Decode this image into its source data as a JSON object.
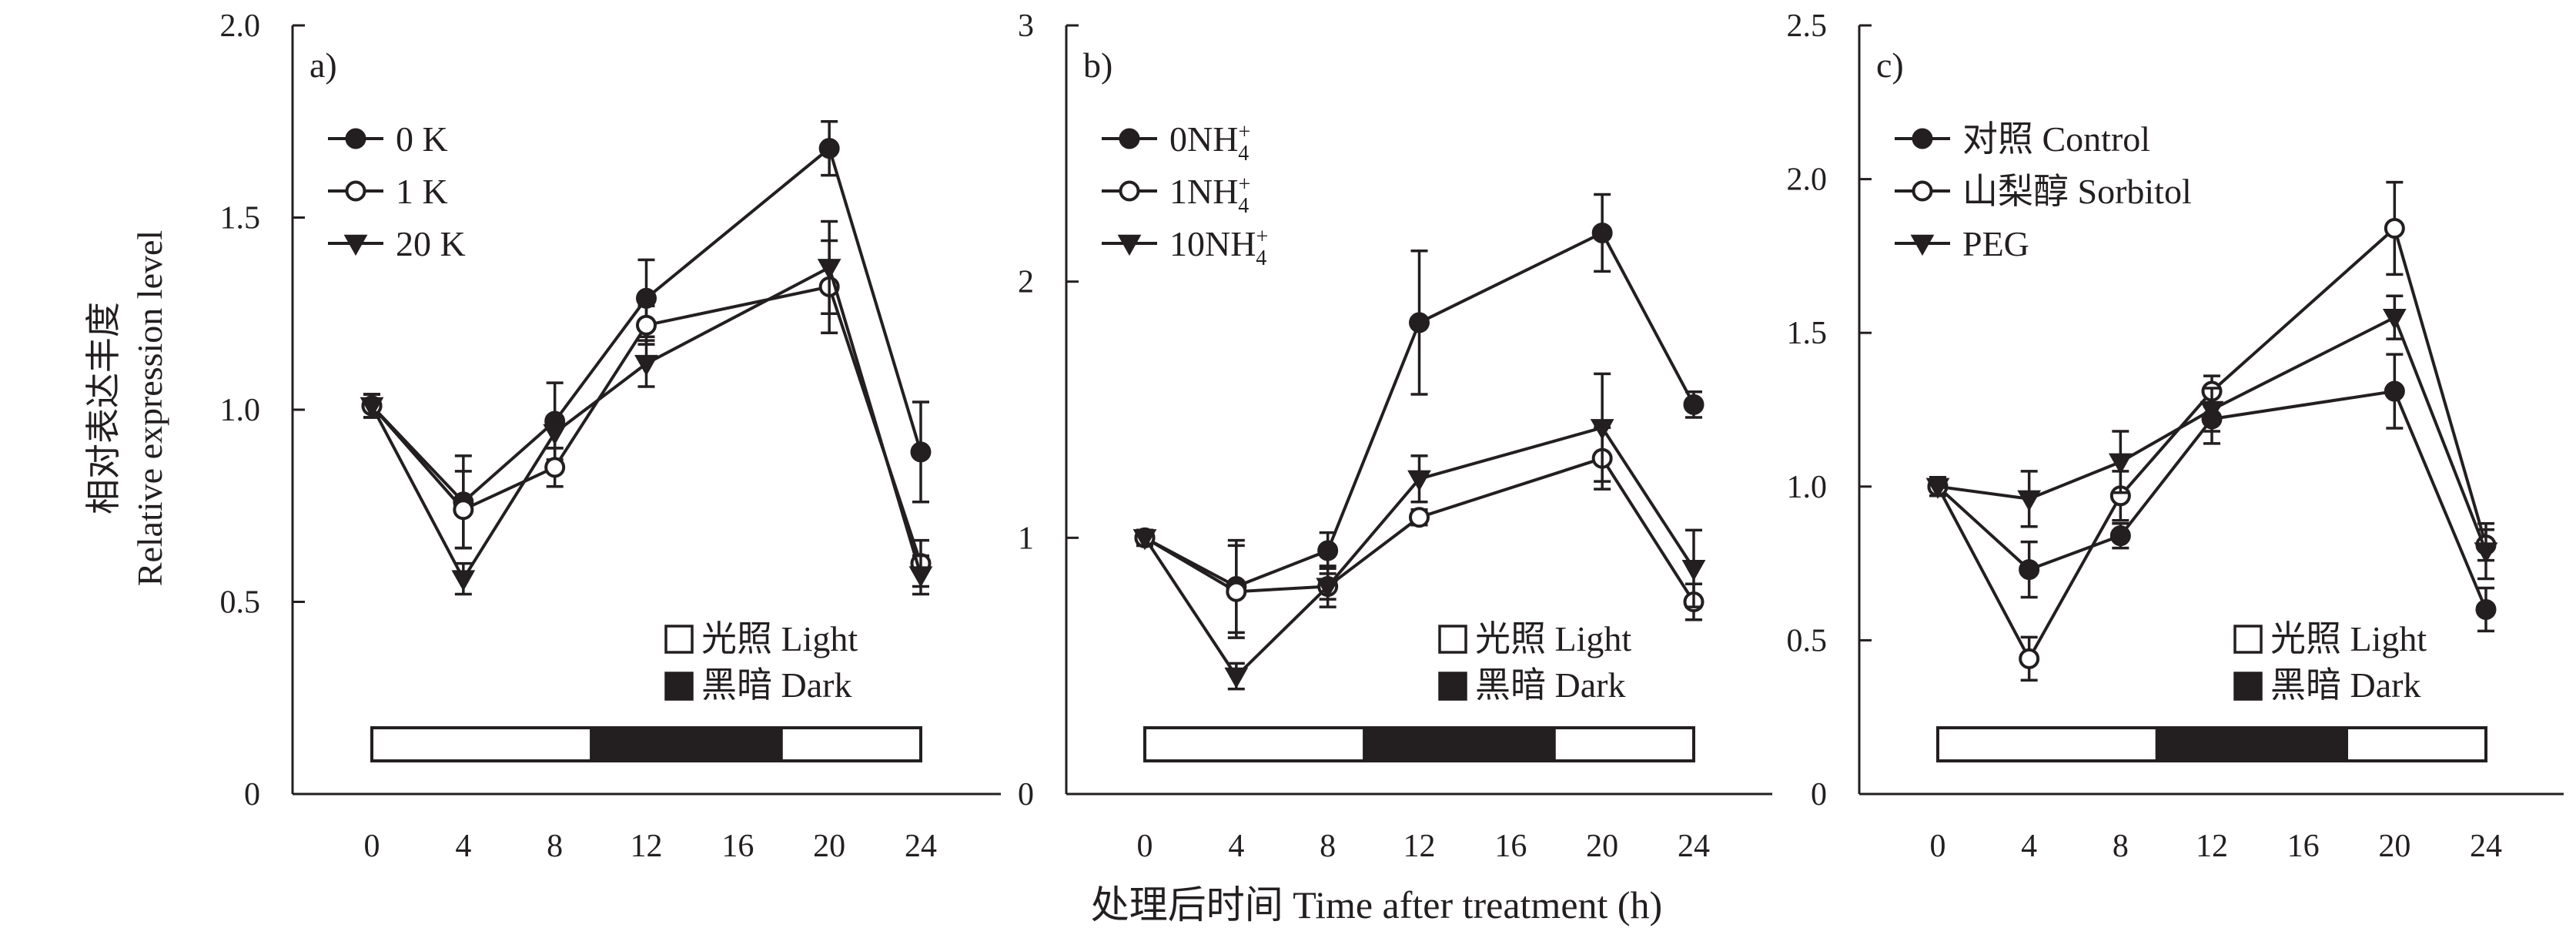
{
  "figure": {
    "ylabel_cn": "相对表达丰度",
    "ylabel_en": "Relative expression level",
    "xlabel": "处理后时间 Time after treatment (h)",
    "light_legend": "光照 Light",
    "dark_legend": "黑暗 Dark"
  },
  "chart_data": [
    {
      "type": "line",
      "panel_label": "a)",
      "x": [
        0,
        4,
        8,
        12,
        16,
        20,
        24
      ],
      "x_ticks": [
        "0",
        "4",
        "8",
        "12",
        "16",
        "20",
        "24"
      ],
      "ylim": [
        0,
        2.0
      ],
      "y_ticks": [
        "0",
        "0.5",
        "1.0",
        "1.5",
        "2.0"
      ],
      "y_tick_values": [
        0,
        0.5,
        1.0,
        1.5,
        2.0
      ],
      "xlabel": "处理后时间 Time after treatment (h)",
      "ylabel": "相对表达丰度 Relative expression level",
      "light_dark_bar": [
        {
          "phase": "light",
          "start": 0,
          "end": 9.6
        },
        {
          "phase": "dark",
          "start": 9.6,
          "end": 17.9
        },
        {
          "phase": "light",
          "start": 17.9,
          "end": 24
        }
      ],
      "series": [
        {
          "name": "0 K",
          "marker": "filled-circle",
          "x": [
            0,
            4,
            8,
            20,
            24,
            12
          ],
          "y": [
            1.01,
            0.76,
            0.97,
            1.68,
            0.89,
            1.29
          ],
          "err": [
            0.03,
            0.12,
            0.1,
            0.07,
            0.13,
            0.1
          ]
        },
        {
          "name": "1 K",
          "marker": "open-circle",
          "x": [
            0,
            4,
            8,
            12,
            20,
            24
          ],
          "y": [
            1.01,
            0.74,
            0.85,
            1.22,
            1.32,
            0.6
          ],
          "err": [
            0.03,
            0.1,
            0.05,
            0.05,
            0.12,
            0.06
          ]
        },
        {
          "name": "20 K",
          "marker": "filled-triangle-down",
          "x": [
            0,
            4,
            8,
            12,
            20,
            24
          ],
          "y": [
            1.01,
            0.56,
            0.94,
            1.12,
            1.37,
            0.57
          ],
          "err": [
            0.03,
            0.04,
            0.04,
            0.06,
            0.12,
            0.05
          ]
        }
      ]
    },
    {
      "type": "line",
      "panel_label": "b)",
      "x": [
        0,
        4,
        8,
        12,
        16,
        20,
        24
      ],
      "x_ticks": [
        "0",
        "4",
        "8",
        "12",
        "16",
        "20",
        "24"
      ],
      "ylim": [
        0,
        3
      ],
      "y_ticks": [
        "0",
        "1",
        "2",
        "3"
      ],
      "y_tick_values": [
        0,
        1,
        2,
        3
      ],
      "xlabel": "处理后时间 Time after treatment (h)",
      "light_dark_bar": [
        {
          "phase": "light",
          "start": 0,
          "end": 9.6
        },
        {
          "phase": "dark",
          "start": 9.6,
          "end": 17.9
        },
        {
          "phase": "light",
          "start": 17.9,
          "end": 24
        }
      ],
      "series": [
        {
          "name": "0NH₄⁺",
          "name_base": "0NH",
          "marker": "filled-circle",
          "x": [
            0,
            4,
            8,
            12,
            20,
            24
          ],
          "y": [
            1.0,
            0.81,
            0.95,
            1.84,
            2.19,
            1.52
          ],
          "err": [
            0.03,
            0.18,
            0.07,
            0.28,
            0.15,
            0.05
          ]
        },
        {
          "name": "1NH₄⁺",
          "name_base": "1NH",
          "marker": "open-circle",
          "x": [
            0,
            4,
            8,
            12,
            20,
            24
          ],
          "y": [
            1.0,
            0.79,
            0.81,
            1.08,
            1.31,
            0.75
          ],
          "err": [
            0.03,
            0.18,
            0.05,
            0.03,
            0.12,
            0.07
          ]
        },
        {
          "name": "10NH₄⁺",
          "name_base": "10NH",
          "marker": "filled-triangle-down",
          "x": [
            0,
            4,
            8,
            12,
            20,
            24
          ],
          "y": [
            1.0,
            0.46,
            0.81,
            1.23,
            1.43,
            0.88
          ],
          "err": [
            0.03,
            0.05,
            0.08,
            0.09,
            0.21,
            0.15
          ]
        }
      ]
    },
    {
      "type": "line",
      "panel_label": "c)",
      "x": [
        0,
        4,
        8,
        12,
        16,
        20,
        24
      ],
      "x_ticks": [
        "0",
        "4",
        "8",
        "12",
        "16",
        "20",
        "24"
      ],
      "ylim": [
        0,
        2.5
      ],
      "y_ticks": [
        "0",
        "0.5",
        "1.0",
        "1.5",
        "2.0",
        "2.5"
      ],
      "y_tick_values": [
        0,
        0.5,
        1.0,
        1.5,
        2.0,
        2.5
      ],
      "xlabel": "处理后时间 Time after treatment (h)",
      "light_dark_bar": [
        {
          "phase": "light",
          "start": 0,
          "end": 9.6
        },
        {
          "phase": "dark",
          "start": 9.6,
          "end": 17.9
        },
        {
          "phase": "light",
          "start": 17.9,
          "end": 24
        }
      ],
      "series": [
        {
          "name": "对照 Control",
          "marker": "filled-circle",
          "x": [
            0,
            4,
            8,
            12,
            20,
            24
          ],
          "y": [
            1.0,
            0.73,
            0.84,
            1.22,
            1.31,
            0.6
          ],
          "err": [
            0.03,
            0.09,
            0.04,
            0.08,
            0.12,
            0.07
          ]
        },
        {
          "name": "山梨醇 Sorbitol",
          "marker": "open-circle",
          "x": [
            0,
            4,
            8,
            12,
            20,
            24
          ],
          "y": [
            1.0,
            0.44,
            0.97,
            1.31,
            1.84,
            0.81
          ],
          "err": [
            0.03,
            0.07,
            0.08,
            0.05,
            0.15,
            0.05
          ]
        },
        {
          "name": "PEG",
          "marker": "filled-triangle-down",
          "x": [
            0,
            4,
            8,
            12,
            20,
            24
          ],
          "y": [
            1.0,
            0.96,
            1.08,
            1.25,
            1.55,
            0.79
          ],
          "err": [
            0.03,
            0.09,
            0.1,
            0.07,
            0.07,
            0.09
          ]
        }
      ]
    }
  ]
}
